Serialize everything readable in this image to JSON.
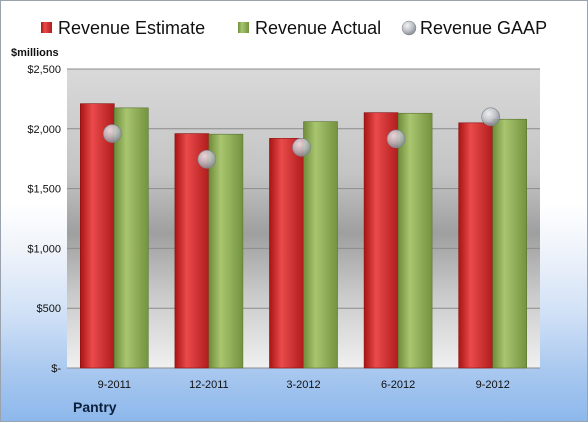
{
  "chart_data": {
    "type": "bar",
    "title": "",
    "xlabel": "",
    "ylabel": "$millions",
    "footer_label": "Pantry",
    "categories": [
      "9-2011",
      "12-2011",
      "3-2012",
      "6-2012",
      "9-2012"
    ],
    "series": [
      {
        "name": "Revenue Estimate",
        "type": "bar",
        "color": "#d42a2a",
        "values": [
          2210,
          1960,
          1920,
          2135,
          2050
        ]
      },
      {
        "name": "Revenue Actual",
        "type": "bar",
        "color": "#8fae55",
        "values": [
          2175,
          1955,
          2060,
          2130,
          2080
        ]
      },
      {
        "name": "Revenue GAAP",
        "type": "scatter",
        "color": "#b8bcc2",
        "values": [
          1960,
          1745,
          1845,
          1915,
          2100
        ]
      }
    ],
    "ylim": [
      0,
      2500
    ],
    "yticks": [
      0,
      500,
      1000,
      1500,
      2000,
      2500
    ],
    "ytick_labels": [
      "$-",
      "$500",
      "$1,000",
      "$1,500",
      "$2,000",
      "$2,500"
    ],
    "grid": true,
    "legend_position": "top"
  }
}
